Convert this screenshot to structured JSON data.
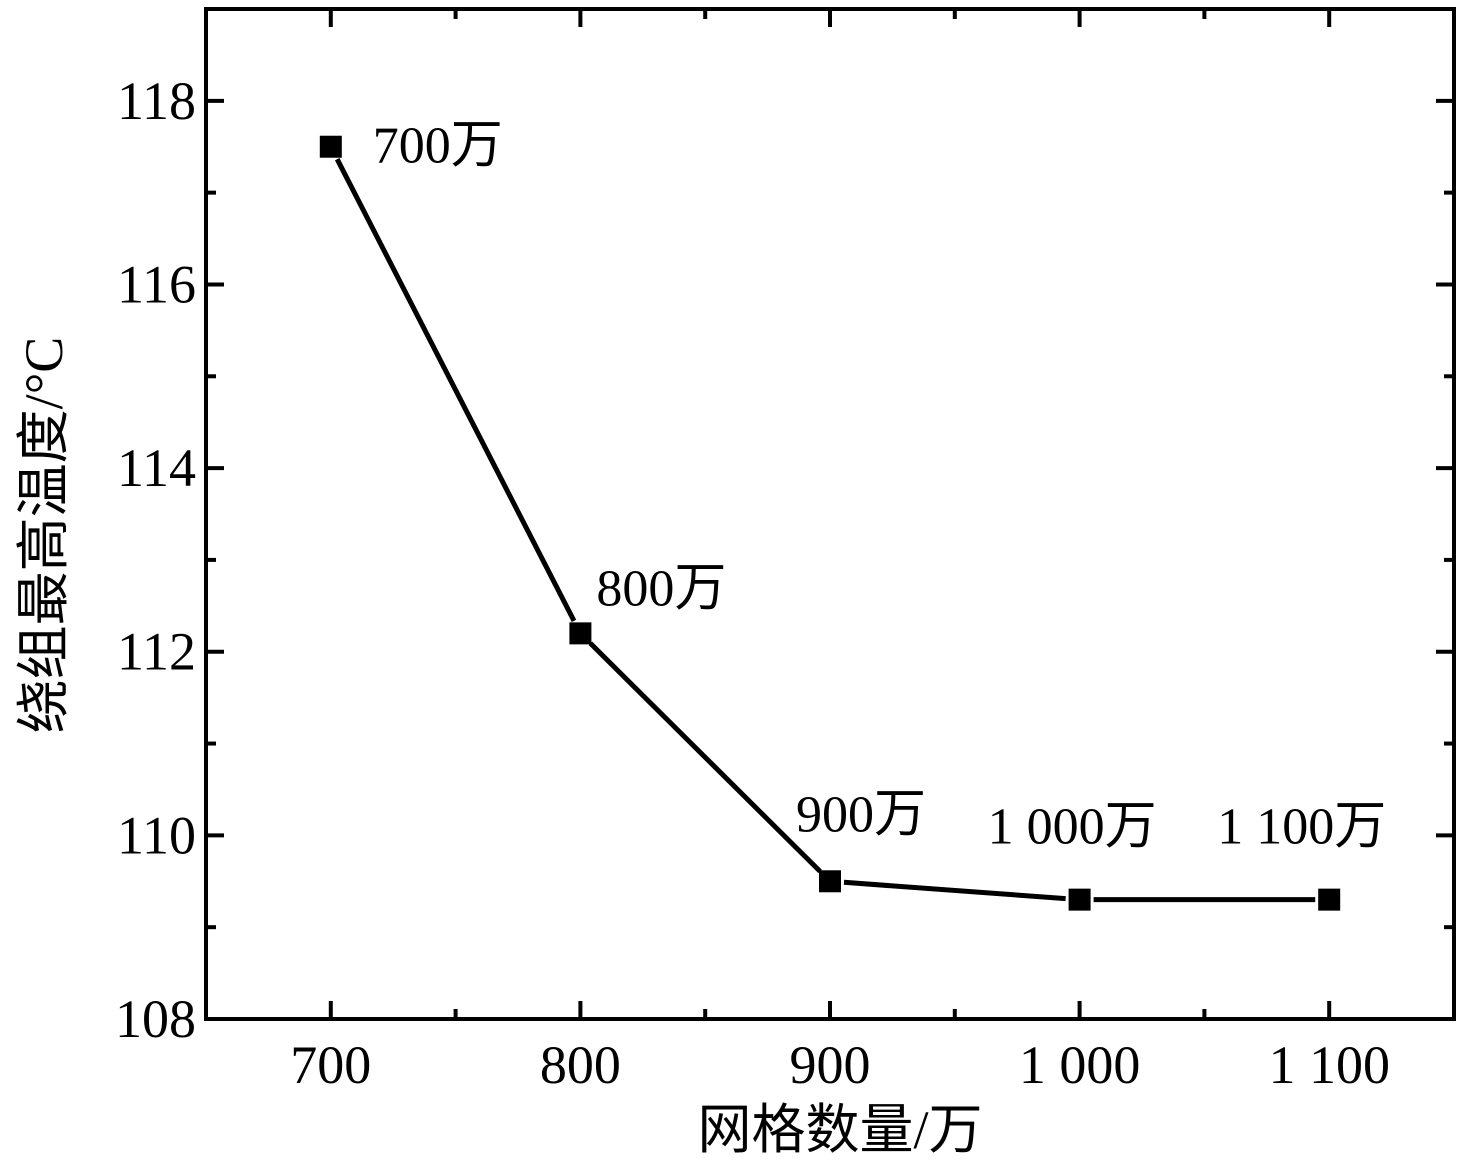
{
  "chart_data": {
    "type": "line",
    "title": "",
    "xlabel": "网格数量/万",
    "ylabel": "绕组最高温度/°C",
    "x": [
      700,
      800,
      900,
      1000,
      1100
    ],
    "series": [
      {
        "values": [
          117.5,
          112.2,
          109.5,
          109.3,
          109.3
        ]
      }
    ],
    "point_labels": [
      "700万",
      "800万",
      "900万",
      "1 000万",
      "1 100万"
    ],
    "xlim": [
      650,
      1150
    ],
    "ylim": [
      108,
      119
    ],
    "x_ticks": [
      700,
      800,
      900,
      1000,
      1100
    ],
    "x_tick_labels": [
      "700",
      "800",
      "900",
      "1 000",
      "1 100"
    ],
    "y_ticks": [
      108,
      110,
      112,
      114,
      116,
      118
    ],
    "y_tick_labels": [
      "108",
      "110",
      "112",
      "114",
      "116",
      "118"
    ],
    "grid": false,
    "marker": "square",
    "line_color": "#000000"
  }
}
